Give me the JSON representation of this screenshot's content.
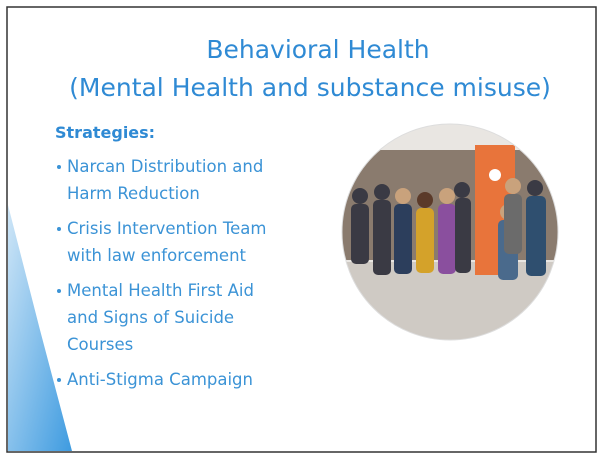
{
  "title": [
    "Behavioral Health",
    "(Mental Health and substance misuse)"
  ],
  "subtitle": "Strategies:",
  "bullets": [
    [
      "Narcan Distribution and",
      "Harm Reduction"
    ],
    [
      "Crisis Intervention Team",
      "with law enforcement"
    ],
    [
      "Mental Health First Aid",
      "and Signs of Suicide",
      "Courses"
    ],
    [
      "Anti-Stigma Campaign"
    ]
  ]
}
